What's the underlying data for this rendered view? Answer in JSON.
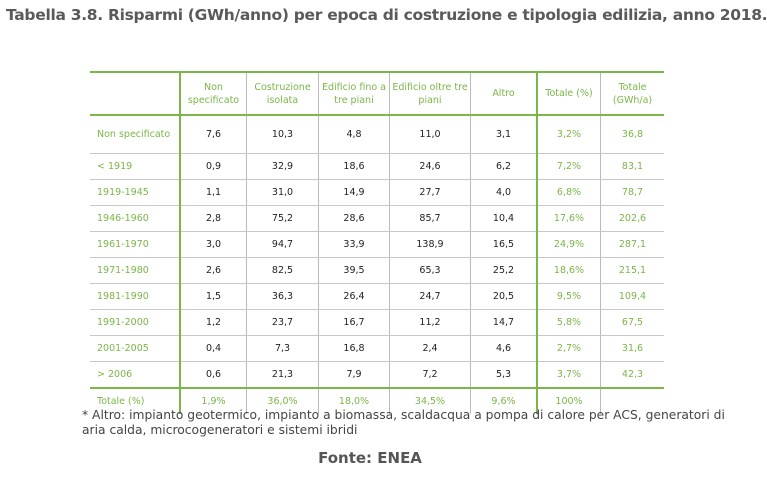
{
  "title": "Tabella 3.8. Risparmi (GWh/anno) per epoca di costruzione e tipologia edilizia, anno 2018.",
  "table": {
    "headers": [
      "",
      "Non specificato",
      "Costruzione isolata",
      "Edificio fino a tre piani",
      "Edificio oltre tre piani",
      "Altro",
      "Totale (%)",
      "Totale (GWh/a)"
    ],
    "rows": [
      [
        "Non specificato",
        "7,6",
        "10,3",
        "4,8",
        "11,0",
        "3,1",
        "3,2%",
        "36,8"
      ],
      [
        "< 1919",
        "0,9",
        "32,9",
        "18,6",
        "24,6",
        "6,2",
        "7,2%",
        "83,1"
      ],
      [
        "1919-1945",
        "1,1",
        "31,0",
        "14,9",
        "27,7",
        "4,0",
        "6,8%",
        "78,7"
      ],
      [
        "1946-1960",
        "2,8",
        "75,2",
        "28,6",
        "85,7",
        "10,4",
        "17,6%",
        "202,6"
      ],
      [
        "1961-1970",
        "3,0",
        "94,7",
        "33,9",
        "138,9",
        "16,5",
        "24,9%",
        "287,1"
      ],
      [
        "1971-1980",
        "2,6",
        "82,5",
        "39,5",
        "65,3",
        "25,2",
        "18,6%",
        "215,1"
      ],
      [
        "1981-1990",
        "1,5",
        "36,3",
        "26,4",
        "24,7",
        "20,5",
        "9,5%",
        "109,4"
      ],
      [
        "1991-2000",
        "1,2",
        "23,7",
        "16,7",
        "11,2",
        "14,7",
        "5,8%",
        "67,5"
      ],
      [
        "2001-2005",
        "0,4",
        "7,3",
        "16,8",
        "2,4",
        "4,6",
        "2,7%",
        "31,6"
      ],
      [
        "> 2006",
        "0,6",
        "21,3",
        "7,9",
        "7,2",
        "5,3",
        "3,7%",
        "42,3"
      ]
    ],
    "total": [
      "Totale (%)",
      "1,9%",
      "36,0%",
      "18,0%",
      "34,5%",
      "9,6%",
      "100%",
      ""
    ]
  },
  "footnote": "* Altro: impianto geotermico, impianto a biomassa, scaldacqua a pompa di calore per ACS, generatori di aria calda, microcogeneratori e sistemi ibridi",
  "source": "Fonte: ENEA",
  "colors": {
    "accent": "#7ab648",
    "text": "#555555"
  }
}
